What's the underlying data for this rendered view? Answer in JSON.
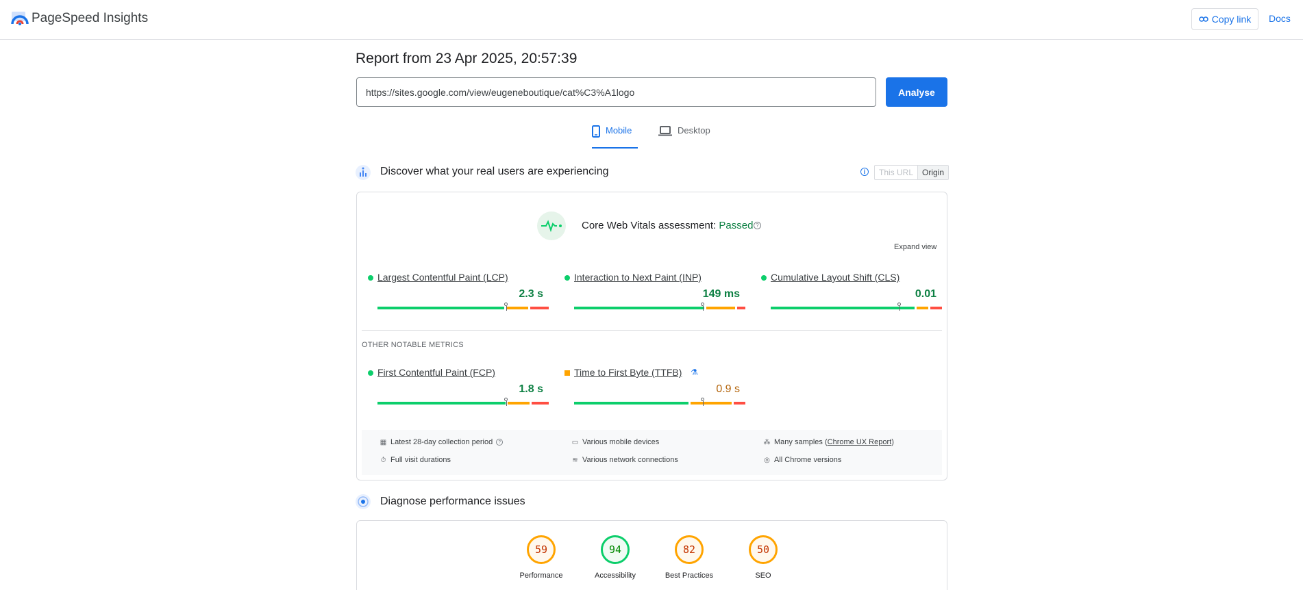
{
  "header": {
    "brand": "PageSpeed Insights",
    "copy_link": "Copy link",
    "docs": "Docs"
  },
  "report": {
    "title": "Report from 23 Apr 2025, 20:57:39",
    "url": "https://sites.google.com/view/eugeneboutique/cat%C3%A1logo",
    "analyse": "Analyse"
  },
  "tabs": {
    "mobile": "Mobile",
    "desktop": "Desktop",
    "selected": "Mobile"
  },
  "real_users": {
    "title": "Discover what your real users are experiencing",
    "toggle_this_url": "This URL",
    "toggle_origin": "Origin",
    "toggle_selected": "Origin"
  },
  "cwv": {
    "assessment_label": "Core Web Vitals assessment: ",
    "assessment_result": "Passed",
    "expand_view": "Expand view",
    "metrics": [
      {
        "name": "Largest Contentful Paint (LCP)",
        "value": "2.3 s",
        "status": "good",
        "distribution": [
          0.75,
          0.14,
          0.11
        ],
        "marker_fraction": 0.75
      },
      {
        "name": "Interaction to Next Paint (INP)",
        "value": "149 ms",
        "status": "good",
        "distribution": [
          0.77,
          0.18,
          0.05
        ],
        "marker_fraction": 0.75
      },
      {
        "name": "Cumulative Layout Shift (CLS)",
        "value": "0.01",
        "status": "good",
        "distribution": [
          0.85,
          0.08,
          0.07
        ],
        "marker_fraction": 0.75
      }
    ],
    "other_label": "OTHER NOTABLE METRICS",
    "other_metrics": [
      {
        "name": "First Contentful Paint (FCP)",
        "value": "1.8 s",
        "status": "good",
        "distribution": [
          0.76,
          0.14,
          0.1
        ],
        "marker_fraction": 0.75
      },
      {
        "name": "Time to First Byte (TTFB)",
        "value": "0.9 s",
        "status": "average",
        "distribution": [
          0.68,
          0.25,
          0.07
        ],
        "marker_fraction": 0.75
      }
    ]
  },
  "collection_info": {
    "period": "Latest 28-day collection period",
    "durations": "Full visit durations",
    "devices": "Various mobile devices",
    "network": "Various network connections",
    "samples_prefix": "Many samples (",
    "samples_link": "Chrome UX Report",
    "samples_suffix": ")",
    "chrome_versions": "All Chrome versions"
  },
  "diagnose": {
    "title": "Diagnose performance issues",
    "scores": [
      {
        "label": "Performance",
        "value": "59",
        "status": "average"
      },
      {
        "label": "Accessibility",
        "value": "94",
        "status": "good"
      },
      {
        "label": "Best Practices",
        "value": "82",
        "status": "average"
      },
      {
        "label": "SEO",
        "value": "50",
        "status": "average"
      }
    ]
  },
  "colors": {
    "accent": "#1a73e8",
    "good": "#0cce6b",
    "average": "#ffa400",
    "poor": "#ff4e42"
  }
}
